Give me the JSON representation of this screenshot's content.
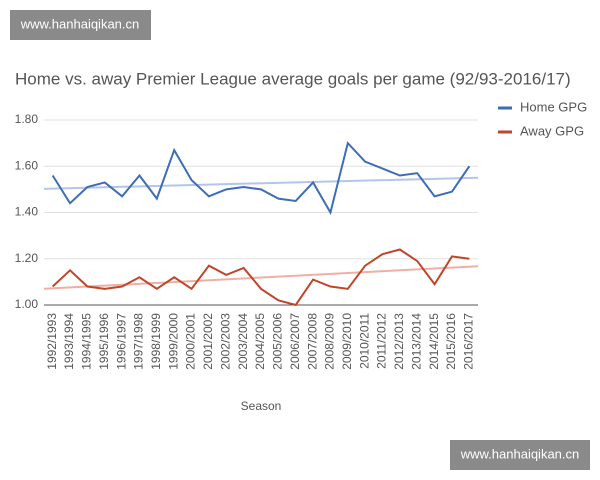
{
  "chart_data": {
    "type": "line",
    "title": "Home vs. away Premier League average goals per game (92/93-2016/17)",
    "x_label": "Season",
    "watermarks": [
      "www.hanhaiqikan.cn",
      "www.hanhaiqikan.cn"
    ],
    "categories": [
      "1992/1993",
      "1993/1994",
      "1994/1995",
      "1995/1996",
      "1996/1997",
      "1997/1998",
      "1998/1999",
      "1999/2000",
      "2000/2001",
      "2001/2002",
      "2002/2003",
      "2003/2004",
      "2004/2005",
      "2005/2006",
      "2006/2007",
      "2007/2008",
      "2008/2009",
      "2009/2010",
      "2010/2011",
      "2011/2012",
      "2012/2013",
      "2013/2014",
      "2014/2015",
      "2015/2016",
      "2016/2017"
    ],
    "series": [
      {
        "name": "Home GPG",
        "color": "#3d6db5",
        "trend_color": "#b3c6e8",
        "values": [
          1.56,
          1.44,
          1.51,
          1.53,
          1.47,
          1.56,
          1.46,
          1.67,
          1.54,
          1.47,
          1.5,
          1.51,
          1.5,
          1.46,
          1.45,
          1.53,
          1.4,
          1.7,
          1.62,
          1.59,
          1.56,
          1.57,
          1.47,
          1.49,
          1.6
        ]
      },
      {
        "name": "Away GPG",
        "color": "#c0452a",
        "trend_color": "#efb0a3",
        "values": [
          1.08,
          1.15,
          1.08,
          1.07,
          1.08,
          1.12,
          1.07,
          1.12,
          1.07,
          1.17,
          1.13,
          1.16,
          1.07,
          1.02,
          1.0,
          1.11,
          1.08,
          1.07,
          1.17,
          1.22,
          1.24,
          1.19,
          1.09,
          1.21,
          1.2
        ]
      }
    ],
    "trendlines": true,
    "ylim": [
      1.0,
      1.8
    ],
    "yticks": [
      {
        "value": 1.0,
        "label": "1.00"
      },
      {
        "value": 1.2,
        "label": "1.20"
      },
      {
        "value": 1.4,
        "label": "1.40"
      },
      {
        "value": 1.6,
        "label": "1.60"
      },
      {
        "value": 1.8,
        "label": "1.80"
      }
    ],
    "grid": true,
    "legend": "right"
  }
}
